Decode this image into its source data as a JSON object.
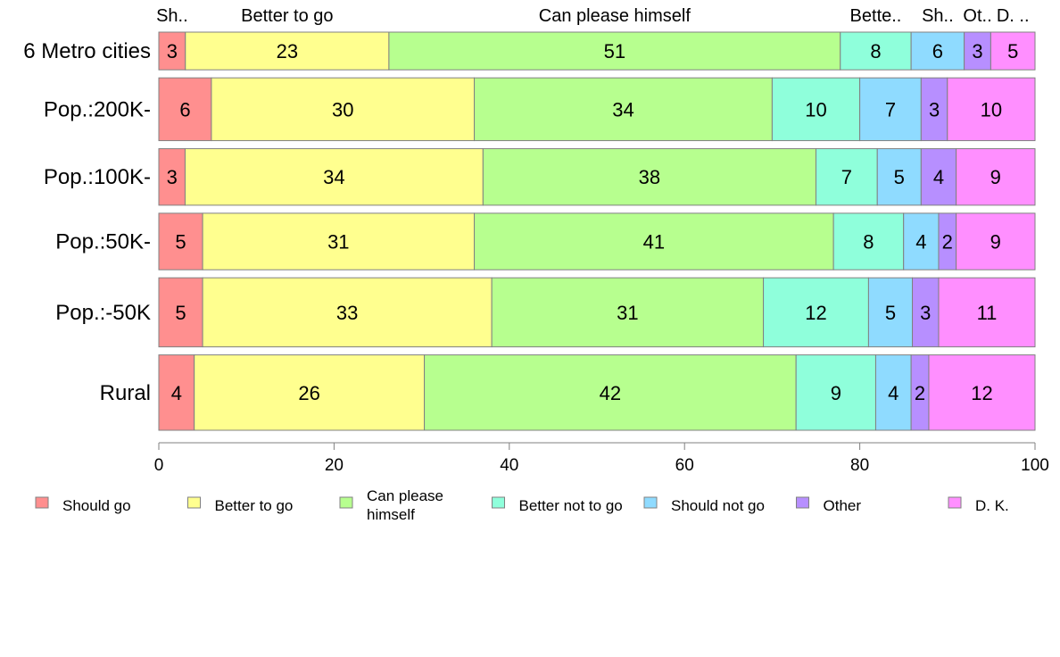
{
  "chart_data": {
    "type": "bar",
    "orientation": "horizontal",
    "stacked": true,
    "categories": [
      "6 Metro cities",
      "Pop.:200K-",
      "Pop.:100K-",
      "Pop.:50K-",
      "Pop.:-50K",
      "Rural"
    ],
    "series": [
      {
        "name": "Should go",
        "short": "Sh..",
        "color": "#ff8f8f",
        "values": [
          3,
          6,
          3,
          5,
          5,
          4
        ]
      },
      {
        "name": "Better to go",
        "short": "Better to go",
        "color": "#ffff8f",
        "values": [
          23,
          30,
          34,
          31,
          33,
          26
        ]
      },
      {
        "name": "Can please himself",
        "short": "Can please himself",
        "legend_lines": [
          "Can please",
          "himself"
        ],
        "color": "#b7ff8f",
        "values": [
          51,
          34,
          38,
          41,
          31,
          42
        ]
      },
      {
        "name": "Better not to go",
        "short": "Bette..",
        "color": "#8fffdb",
        "values": [
          8,
          10,
          7,
          8,
          12,
          9
        ]
      },
      {
        "name": "Should not go",
        "short": "Sh..",
        "color": "#8fdbff",
        "values": [
          6,
          7,
          5,
          4,
          5,
          4
        ]
      },
      {
        "name": "Other",
        "short": "Ot..",
        "color": "#b78fff",
        "values": [
          3,
          3,
          4,
          2,
          3,
          2
        ]
      },
      {
        "name": "D. K.",
        "short": "D. ..",
        "color": "#ff8fff",
        "values": [
          5,
          10,
          9,
          9,
          11,
          12
        ]
      }
    ],
    "row_weights": [
      6,
      10,
      9,
      9,
      11,
      12
    ],
    "xlim": [
      0,
      100
    ],
    "xticks": [
      0,
      20,
      40,
      60,
      80,
      100
    ],
    "grid": false,
    "legend_position": "bottom"
  }
}
